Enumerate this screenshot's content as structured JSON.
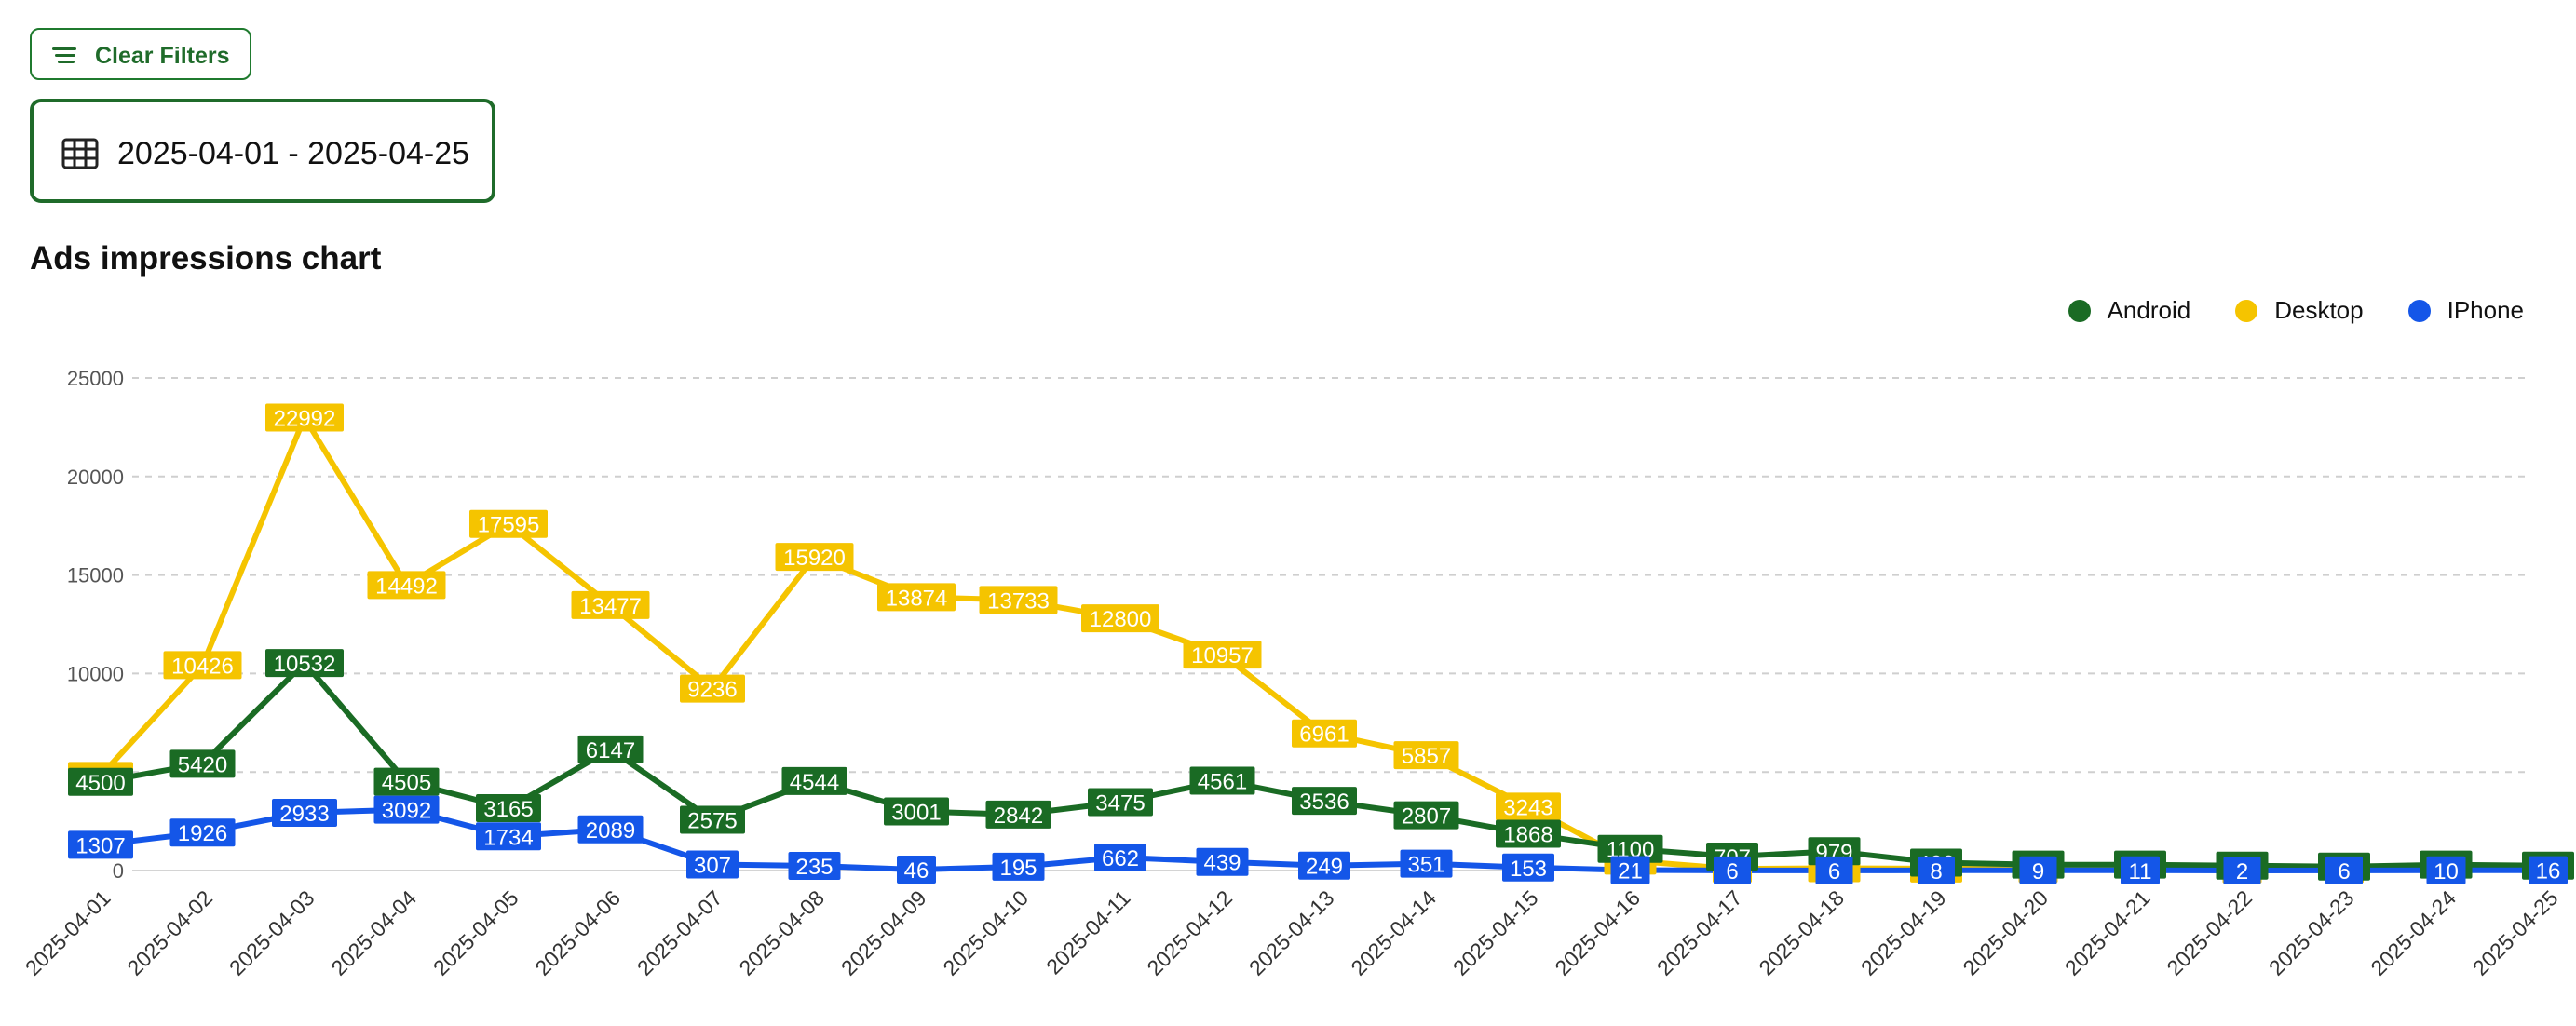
{
  "controls": {
    "clear_filters_label": "Clear Filters",
    "date_range": "2025-04-01 - 2025-04-25"
  },
  "icons": {
    "clear": "filter-lines-icon",
    "date": "table-grid-icon"
  },
  "chart_data": {
    "type": "line",
    "title": "Ads impressions chart",
    "xlabel": "",
    "ylabel": "",
    "ylim": [
      0,
      25000
    ],
    "yticks": [
      0,
      5000,
      10000,
      15000,
      20000,
      25000
    ],
    "grid": true,
    "legend_position": "top-right",
    "categories": [
      "2025-04-01",
      "2025-04-02",
      "2025-04-03",
      "2025-04-04",
      "2025-04-05",
      "2025-04-06",
      "2025-04-07",
      "2025-04-08",
      "2025-04-09",
      "2025-04-10",
      "2025-04-11",
      "2025-04-12",
      "2025-04-13",
      "2025-04-14",
      "2025-04-15",
      "2025-04-16",
      "2025-04-17",
      "2025-04-18",
      "2025-04-19",
      "2025-04-20",
      "2025-04-21",
      "2025-04-22",
      "2025-04-23",
      "2025-04-24",
      "2025-04-25"
    ],
    "series": [
      {
        "name": "Desktop",
        "color": "#f5c400",
        "values": [
          4804,
          10426,
          22992,
          14492,
          17595,
          13477,
          9236,
          15920,
          13874,
          13733,
          12800,
          10957,
          6961,
          5857,
          3243,
          500,
          90,
          120,
          100,
          80,
          90,
          60,
          70,
          90,
          80
        ]
      },
      {
        "name": "Android",
        "color": "#1a6b24",
        "values": [
          4500,
          5420,
          10532,
          4505,
          3165,
          6147,
          2575,
          4544,
          3001,
          2842,
          3475,
          4561,
          3536,
          2807,
          1868,
          1100,
          707,
          979,
          400,
          300,
          300,
          250,
          200,
          300,
          250
        ]
      },
      {
        "name": "IPhone",
        "color": "#1456e8",
        "values": [
          1307,
          1926,
          2933,
          3092,
          1734,
          2089,
          307,
          235,
          46,
          195,
          662,
          439,
          249,
          351,
          153,
          21,
          6,
          6,
          8,
          9,
          11,
          2,
          6,
          10,
          16
        ]
      }
    ]
  }
}
